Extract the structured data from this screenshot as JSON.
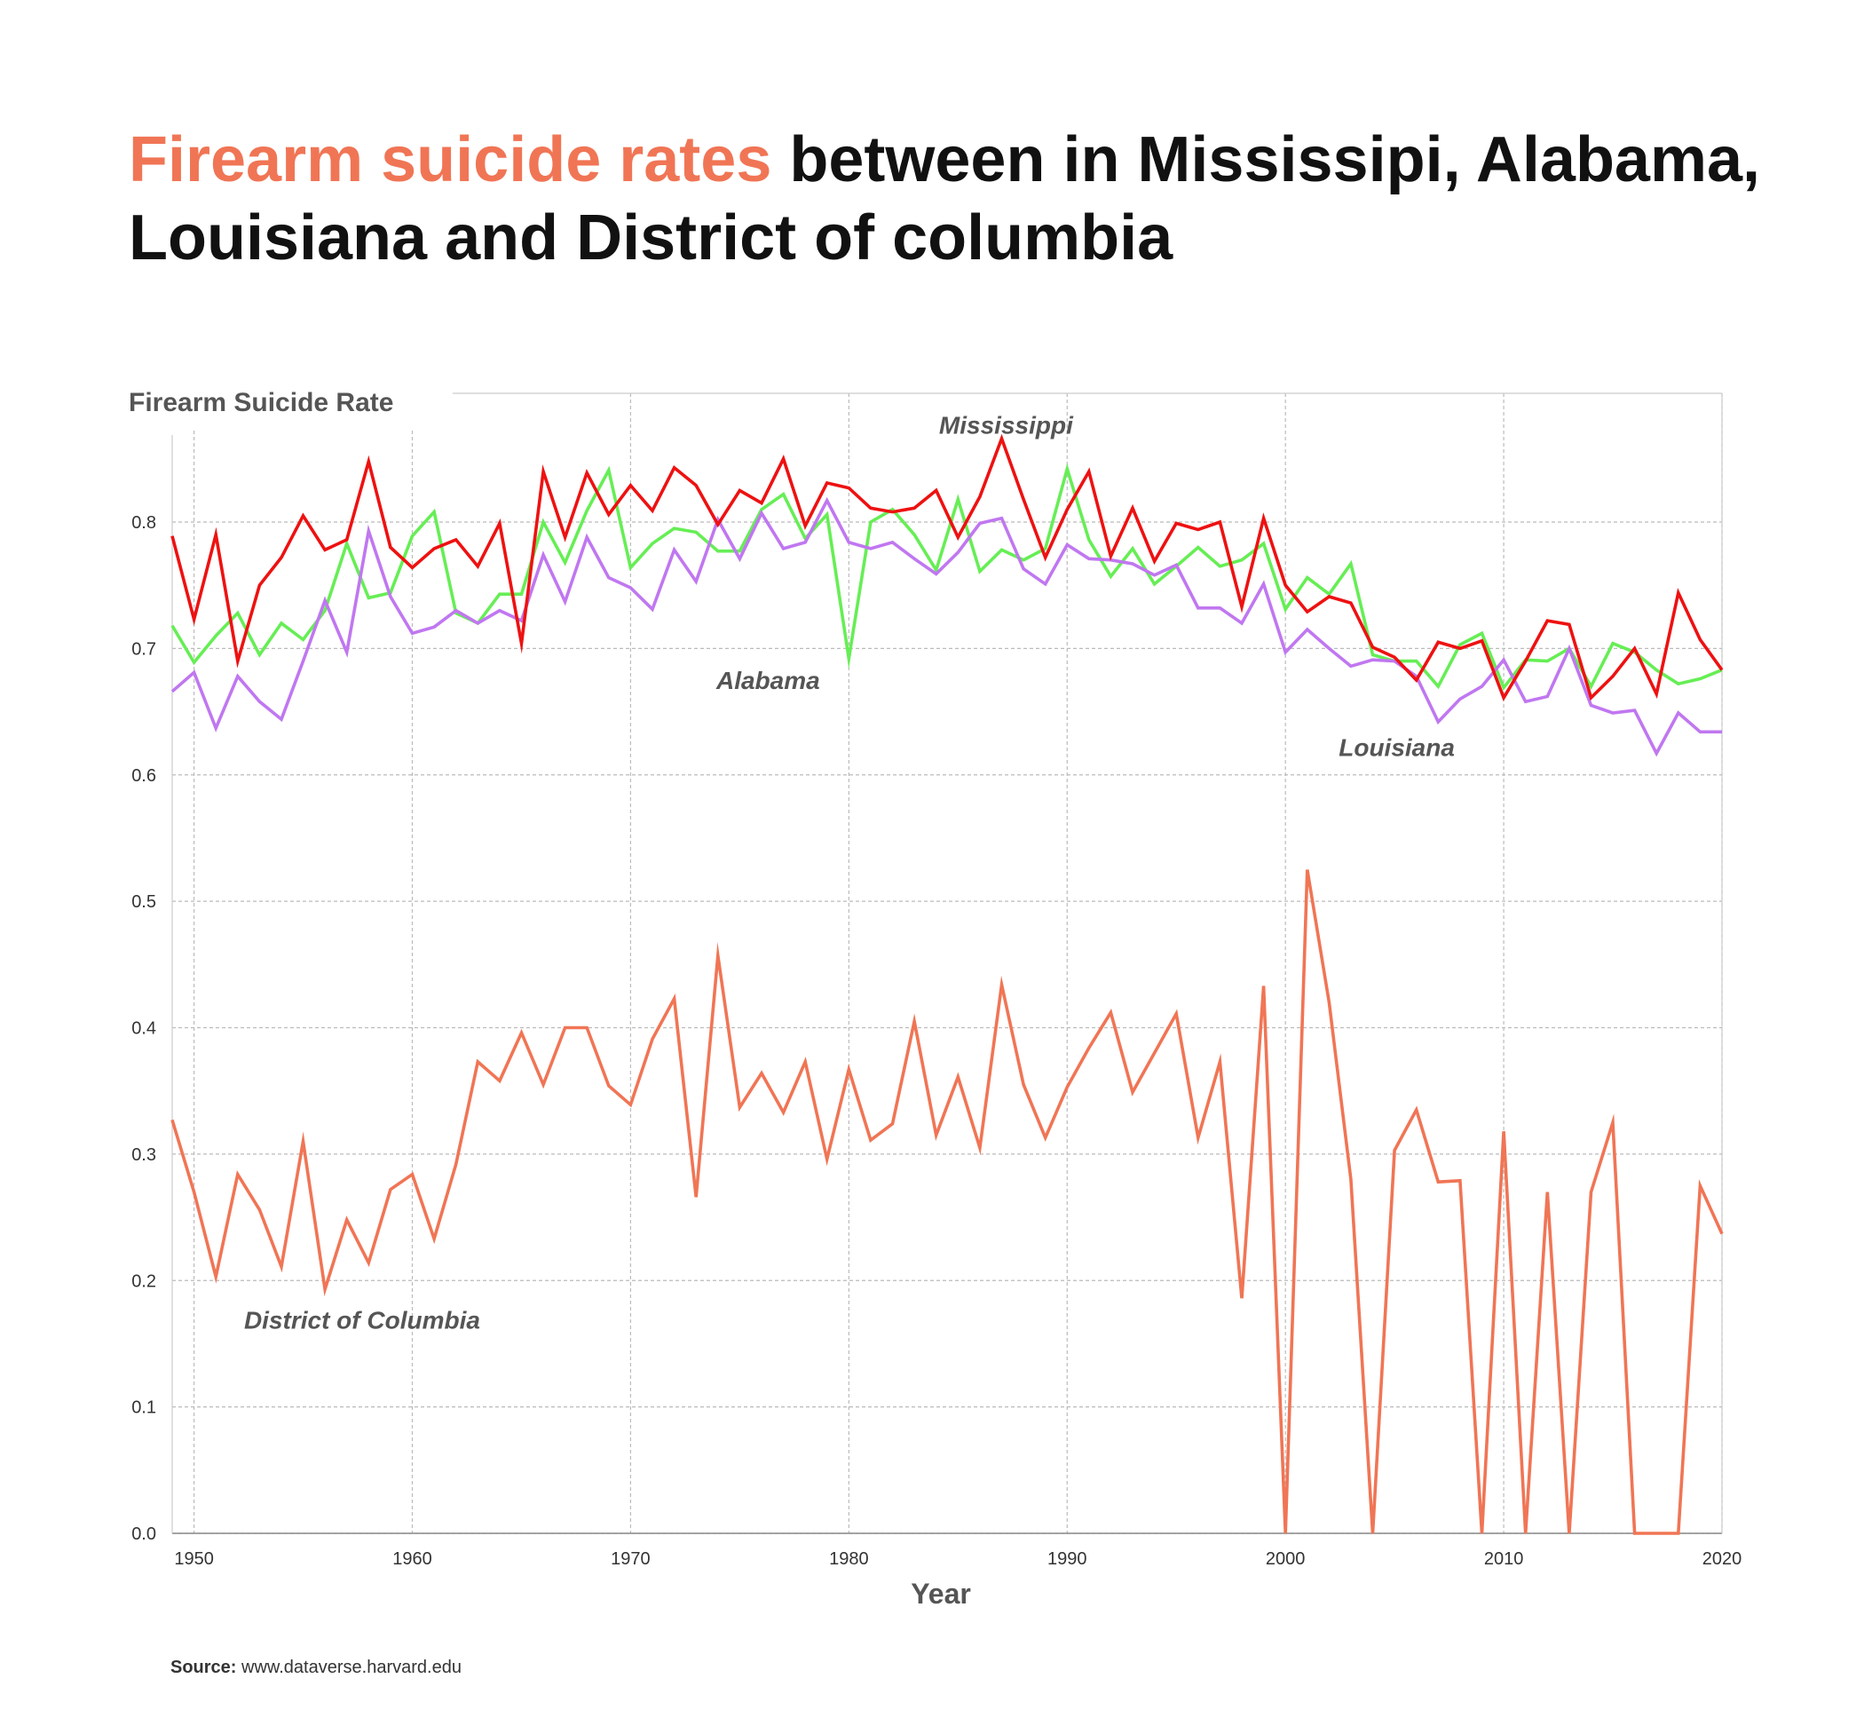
{
  "title": {
    "highlight": "Firearm suicide rates",
    "rest": " between in Mississipi, Alabama, Louisiana and District of columbia",
    "highlight_color": "#f07555"
  },
  "source": {
    "label": "Source:",
    "text": " www.dataverse.harvard.edu"
  },
  "chart_data": {
    "type": "line",
    "ylabel": "Firearm Suicide Rate",
    "xlabel": "Year",
    "xlim": [
      1949,
      2020
    ],
    "ylim": [
      0,
      0.87
    ],
    "x_ticks": [
      1950,
      1960,
      1970,
      1980,
      1990,
      2000,
      2010,
      2020
    ],
    "y_ticks": [
      "0.0",
      "0.1",
      "0.2",
      "0.3",
      "0.4",
      "0.5",
      "0.6",
      "0.7",
      "0.8"
    ],
    "grid": true,
    "x": [
      1949,
      1950,
      1951,
      1952,
      1953,
      1954,
      1955,
      1956,
      1957,
      1958,
      1959,
      1960,
      1961,
      1962,
      1963,
      1964,
      1965,
      1966,
      1967,
      1968,
      1969,
      1970,
      1971,
      1972,
      1973,
      1974,
      1975,
      1976,
      1977,
      1978,
      1979,
      1980,
      1981,
      1982,
      1983,
      1984,
      1985,
      1986,
      1987,
      1988,
      1989,
      1990,
      1991,
      1992,
      1993,
      1994,
      1995,
      1996,
      1997,
      1998,
      1999,
      2000,
      2001,
      2002,
      2003,
      2004,
      2005,
      2006,
      2007,
      2008,
      2009,
      2010,
      2011,
      2012,
      2013,
      2014,
      2015,
      2016,
      2017,
      2018,
      2019,
      2020
    ],
    "series": [
      {
        "name": "Mississippi",
        "color": "#ee1111",
        "values": [
          0.789,
          0.723,
          0.79,
          0.69,
          0.75,
          0.772,
          0.805,
          0.778,
          0.786,
          0.848,
          0.78,
          0.764,
          0.779,
          0.786,
          0.765,
          0.799,
          0.704,
          0.84,
          0.788,
          0.839,
          0.806,
          0.829,
          0.809,
          0.843,
          0.829,
          0.798,
          0.825,
          0.815,
          0.85,
          0.797,
          0.831,
          0.827,
          0.811,
          0.808,
          0.811,
          0.825,
          0.788,
          0.82,
          0.866,
          0.818,
          0.772,
          0.81,
          0.84,
          0.773,
          0.811,
          0.769,
          0.799,
          0.794,
          0.8,
          0.733,
          0.803,
          0.75,
          0.729,
          0.741,
          0.736,
          0.701,
          0.693,
          0.675,
          0.705,
          0.7,
          0.706,
          0.661,
          0.69,
          0.722,
          0.719,
          0.661,
          0.678,
          0.7,
          0.664,
          0.744,
          0.707,
          0.683
        ]
      },
      {
        "name": "Alabama",
        "color": "#66ee55",
        "values": [
          0.718,
          0.689,
          0.71,
          0.728,
          0.695,
          0.72,
          0.707,
          0.73,
          0.783,
          0.74,
          0.744,
          0.789,
          0.808,
          0.728,
          0.72,
          0.743,
          0.743,
          0.8,
          0.768,
          0.809,
          0.841,
          0.764,
          0.783,
          0.795,
          0.792,
          0.777,
          0.777,
          0.81,
          0.822,
          0.787,
          0.806,
          0.692,
          0.8,
          0.81,
          0.79,
          0.762,
          0.818,
          0.761,
          0.778,
          0.77,
          0.779,
          0.842,
          0.786,
          0.757,
          0.779,
          0.751,
          0.765,
          0.78,
          0.765,
          0.77,
          0.783,
          0.731,
          0.756,
          0.743,
          0.767,
          0.695,
          0.69,
          0.69,
          0.67,
          0.703,
          0.712,
          0.669,
          0.691,
          0.69,
          0.7,
          0.67,
          0.704,
          0.697,
          0.683,
          0.672,
          0.676,
          0.683
        ]
      },
      {
        "name": "Louisiana",
        "color": "#c077f0",
        "values": [
          0.666,
          0.681,
          0.637,
          0.678,
          0.658,
          0.644,
          0.69,
          0.738,
          0.697,
          0.793,
          0.741,
          0.712,
          0.717,
          0.73,
          0.72,
          0.73,
          0.722,
          0.774,
          0.737,
          0.788,
          0.756,
          0.748,
          0.731,
          0.778,
          0.753,
          0.802,
          0.771,
          0.807,
          0.779,
          0.784,
          0.817,
          0.784,
          0.779,
          0.784,
          0.771,
          0.759,
          0.776,
          0.799,
          0.803,
          0.763,
          0.751,
          0.782,
          0.771,
          0.77,
          0.767,
          0.758,
          0.766,
          0.732,
          0.732,
          0.72,
          0.751,
          0.697,
          0.715,
          0.7,
          0.686,
          0.691,
          0.69,
          0.678,
          0.642,
          0.66,
          0.67,
          0.691,
          0.658,
          0.662,
          0.7,
          0.655,
          0.649,
          0.651,
          0.617,
          0.649,
          0.634,
          0.634
        ]
      },
      {
        "name": "District of Columbia",
        "color": "#f07555",
        "values": [
          0.327,
          0.27,
          0.203,
          0.284,
          0.256,
          0.211,
          0.31,
          0.193,
          0.248,
          0.214,
          0.272,
          0.284,
          0.233,
          0.292,
          0.373,
          0.358,
          0.396,
          0.355,
          0.4,
          0.4,
          0.354,
          0.339,
          0.391,
          0.423,
          0.266,
          0.457,
          0.337,
          0.364,
          0.333,
          0.373,
          0.296,
          0.367,
          0.311,
          0.324,
          0.405,
          0.315,
          0.361,
          0.305,
          0.434,
          0.355,
          0.313,
          0.353,
          0.384,
          0.412,
          0.349,
          0.38,
          0.411,
          0.313,
          0.373,
          0.186,
          0.433,
          0.0,
          0.525,
          0.42,
          0.28,
          0.0,
          0.303,
          0.335,
          0.278,
          0.279,
          0.0,
          0.318,
          0.0,
          0.27,
          0.0,
          0.27,
          0.325,
          0.0,
          0.0,
          0.0,
          0.275,
          0.237
        ]
      }
    ],
    "annotations": [
      {
        "text": "Mississippi",
        "x": 1987.2,
        "y": 0.87
      },
      {
        "text": "Alabama",
        "x": 1976.3,
        "y": 0.668
      },
      {
        "text": "Louisiana",
        "x": 2005.1,
        "y": 0.615
      },
      {
        "text": "District of Columbia",
        "x": 1957.7,
        "y": 0.162
      }
    ]
  }
}
